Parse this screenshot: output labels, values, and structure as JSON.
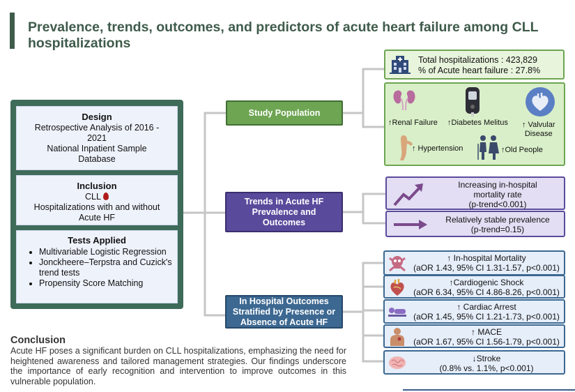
{
  "title": "Prevalence, trends, outcomes, and predictors of acute heart failure among CLL hospitalizations",
  "colors": {
    "title": "#3f5b4a",
    "left_panel": "#3f6b5a",
    "study_node": "#6da552",
    "trends_node": "#5a4a9c",
    "outcomes_node": "#3c6891",
    "connector": "#c6c6c6"
  },
  "left_panel": {
    "design": {
      "heading": "Design",
      "line1": "Retrospective Analysis of 2016 -",
      "line2": "2021",
      "line3": "National Inpatient Sample",
      "line4": "Database"
    },
    "inclusion": {
      "heading": "Inclusion",
      "line1": "CLL",
      "line2": "Hospitalizations with and without",
      "line3": "Acute HF"
    },
    "tests": {
      "heading": "Tests Applied",
      "items": [
        "Multivariable Logistic Regression",
        "Jonckheere–Terpstra and Cuzick's trend tests",
        "Propensity Score Matching"
      ]
    }
  },
  "nodes": {
    "study_population": "Study Population",
    "trends_line1": "Trends in Acute HF",
    "trends_line2": "Prevalence and",
    "trends_line3": "Outcomes",
    "outcomes_line1": "In Hospital Outcomes",
    "outcomes_line2": "Stratified by Presence or",
    "outcomes_line3": "Absence of Acute HF"
  },
  "study_population": {
    "total": "Total hospitalizations : 423,829",
    "percent": "% of Acute heart failure : 27.8%",
    "comorbidities": {
      "renal": "↑Renal Failure",
      "diabetes": "↑Diabetes Melitus",
      "valvular_line1": "↑ Valvular",
      "valvular_line2": "Disease",
      "hypertension": "↑ Hypertension",
      "old_people": "↑Old People"
    },
    "icons": [
      "hospital-icon",
      "kidney-icon",
      "glucometer-icon",
      "heart-icon",
      "arm-icon",
      "elderly-couple-icon"
    ]
  },
  "trends": {
    "t1_line1": "Increasing in-hospital",
    "t1_line2": "mortality rate",
    "t1_line3": "(p-trend<0.001)",
    "t2_line1": "Relatively stable prevalence",
    "t2_line2": "(p-trend=0.15)",
    "icons": [
      "trend-up-arrow-icon",
      "right-arrow-icon"
    ]
  },
  "outcomes": [
    {
      "label": "↑ In-hospital Mortality",
      "stats": "(aOR 1.43, 95% CI 1.31-1.57, p<0.001)",
      "icon": "skull-icon"
    },
    {
      "label": "↑Cardiogenic Shock",
      "stats": "(aOR 6.34, 95% CI 4.86-8.26, p<0.001)",
      "icon": "heart-anatomy-icon"
    },
    {
      "label": "↑ Cardiac Arrest",
      "stats": "(aOR 1.45, 95% CI 1.21-1.73, p<0.001)",
      "icon": "patient-lying-icon"
    },
    {
      "label": "↑ MACE",
      "stats": "(aOR 1.67, 95% CI 1.56-1.79, p<0.001)",
      "icon": "torso-icon"
    },
    {
      "label": "↓Stroke",
      "stats": "(0.8% vs. 1.1%, p<0.001)",
      "icon": "brain-icon"
    }
  ],
  "conclusion": {
    "heading": "Conclusion",
    "text": "Acute HF poses a significant burden on CLL hospitalizations, emphasizing the need for heightened awareness and tailored management strategies. Our findings underscore the importance of early recognition and intervention to improve outcomes in this vulnerable population."
  }
}
